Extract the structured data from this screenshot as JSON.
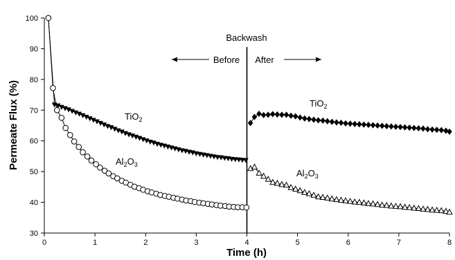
{
  "chart_data": {
    "type": "scatter",
    "xlabel": "Time (h)",
    "ylabel": "Permeate Flux (%)",
    "xlim": [
      0,
      8
    ],
    "ylim": [
      30,
      100
    ],
    "x_ticks": [
      0,
      1,
      2,
      3,
      4,
      5,
      6,
      7,
      8
    ],
    "y_ticks": [
      30,
      40,
      50,
      60,
      70,
      80,
      90,
      100
    ],
    "grid": false,
    "backwash_time": 4,
    "annotations": {
      "backwash": "Backwash",
      "before": "Before",
      "after": "After",
      "tio2_before": {
        "base": "TiO",
        "sub": "2"
      },
      "al2o3_before": {
        "base1": "Al",
        "sub1": "2",
        "base2": "O",
        "sub2": "3"
      },
      "tio2_after": {
        "base": "TiO",
        "sub": "2"
      },
      "al2o3_after": {
        "base1": "Al",
        "sub1": "2",
        "base2": "O",
        "sub2": "3"
      }
    },
    "series": [
      {
        "marker": "triangle-down-filled",
        "x": [
          0.08,
          0.2,
          0.27,
          0.34,
          0.41,
          0.48,
          0.55,
          0.62,
          0.69,
          0.76,
          0.83,
          0.9,
          0.97,
          1.04,
          1.11,
          1.18,
          1.25,
          1.32,
          1.39,
          1.46,
          1.53,
          1.6,
          1.67,
          1.74,
          1.81,
          1.88,
          1.95,
          2.02,
          2.09,
          2.16,
          2.23,
          2.3,
          2.37,
          2.44,
          2.51,
          2.58,
          2.65,
          2.72,
          2.79,
          2.86,
          2.93,
          3.0,
          3.07,
          3.14,
          3.21,
          3.28,
          3.35,
          3.42,
          3.49,
          3.56,
          3.63,
          3.7,
          3.77,
          3.84,
          3.91,
          3.98
        ],
        "y": [
          100,
          71.8,
          71.5,
          71.0,
          70.6,
          70.2,
          69.7,
          69.2,
          68.8,
          68.3,
          67.8,
          67.3,
          66.8,
          66.3,
          65.8,
          65.3,
          64.8,
          64.4,
          63.9,
          63.4,
          63.0,
          62.5,
          62.1,
          61.7,
          61.3,
          60.9,
          60.5,
          60.1,
          59.7,
          59.4,
          59.0,
          58.7,
          58.4,
          58.1,
          57.8,
          57.5,
          57.2,
          56.9,
          56.7,
          56.4,
          56.2,
          55.9,
          55.7,
          55.5,
          55.3,
          55.1,
          54.9,
          54.7,
          54.6,
          54.4,
          54.3,
          54.1,
          54.0,
          53.9,
          53.8,
          53.7
        ]
      },
      {
        "marker": "circle-open",
        "x": [
          0.08,
          0.17,
          0.25,
          0.34,
          0.42,
          0.51,
          0.59,
          0.68,
          0.76,
          0.85,
          0.93,
          1.02,
          1.1,
          1.19,
          1.27,
          1.36,
          1.44,
          1.53,
          1.61,
          1.7,
          1.78,
          1.87,
          1.95,
          2.04,
          2.12,
          2.21,
          2.29,
          2.38,
          2.46,
          2.55,
          2.63,
          2.72,
          2.8,
          2.89,
          2.97,
          3.06,
          3.14,
          3.23,
          3.31,
          3.4,
          3.48,
          3.57,
          3.65,
          3.74,
          3.82,
          3.91,
          3.99
        ],
        "y": [
          100,
          77.2,
          70.0,
          67.5,
          64.2,
          61.9,
          59.8,
          58.0,
          56.3,
          54.9,
          53.6,
          52.4,
          51.3,
          50.3,
          49.4,
          48.5,
          47.8,
          47.0,
          46.4,
          45.7,
          45.1,
          44.6,
          44.1,
          43.6,
          43.2,
          42.8,
          42.4,
          42.1,
          41.8,
          41.5,
          41.2,
          40.9,
          40.6,
          40.4,
          40.1,
          39.9,
          39.7,
          39.5,
          39.3,
          39.1,
          38.9,
          38.8,
          38.6,
          38.5,
          38.4,
          38.4,
          38.3
        ]
      },
      {
        "marker": "diamond-filled",
        "x": [
          4.07,
          4.15,
          4.24,
          4.33,
          4.42,
          4.51,
          4.6,
          4.69,
          4.78,
          4.87,
          4.96,
          5.05,
          5.14,
          5.23,
          5.32,
          5.41,
          5.5,
          5.59,
          5.68,
          5.77,
          5.86,
          5.95,
          6.04,
          6.13,
          6.22,
          6.31,
          6.4,
          6.49,
          6.58,
          6.67,
          6.76,
          6.85,
          6.94,
          7.03,
          7.12,
          7.21,
          7.3,
          7.39,
          7.48,
          7.57,
          7.66,
          7.75,
          7.84,
          7.93,
          8.0
        ],
        "y": [
          65.8,
          67.8,
          68.8,
          68.4,
          68.5,
          68.7,
          68.6,
          68.5,
          68.5,
          68.2,
          68.0,
          67.6,
          67.3,
          67.1,
          66.9,
          66.7,
          66.6,
          66.4,
          66.2,
          66.0,
          65.9,
          65.7,
          65.6,
          65.5,
          65.4,
          65.3,
          65.2,
          65.1,
          65.0,
          64.9,
          64.8,
          64.7,
          64.6,
          64.5,
          64.4,
          64.3,
          64.2,
          64.1,
          64.0,
          63.8,
          63.7,
          63.6,
          63.5,
          63.3,
          63.0
        ]
      },
      {
        "marker": "triangle-up-open",
        "x": [
          4.07,
          4.15,
          4.24,
          4.33,
          4.42,
          4.51,
          4.6,
          4.69,
          4.78,
          4.87,
          4.96,
          5.05,
          5.14,
          5.23,
          5.32,
          5.41,
          5.5,
          5.59,
          5.68,
          5.77,
          5.86,
          5.95,
          6.04,
          6.13,
          6.22,
          6.31,
          6.4,
          6.49,
          6.58,
          6.67,
          6.76,
          6.85,
          6.94,
          7.03,
          7.12,
          7.21,
          7.3,
          7.39,
          7.48,
          7.57,
          7.66,
          7.75,
          7.84,
          7.93,
          8.0
        ],
        "y": [
          51.0,
          51.5,
          49.5,
          48.5,
          47.5,
          46.5,
          46.2,
          45.8,
          45.6,
          44.8,
          44.3,
          43.8,
          43.2,
          42.8,
          42.3,
          41.8,
          41.6,
          41.4,
          41.1,
          40.9,
          40.7,
          40.5,
          40.3,
          40.1,
          40.0,
          39.8,
          39.6,
          39.5,
          39.3,
          39.1,
          39.0,
          38.8,
          38.7,
          38.6,
          38.4,
          38.3,
          38.1,
          38.0,
          37.8,
          37.7,
          37.5,
          37.4,
          37.3,
          37.1,
          36.8
        ]
      }
    ]
  }
}
